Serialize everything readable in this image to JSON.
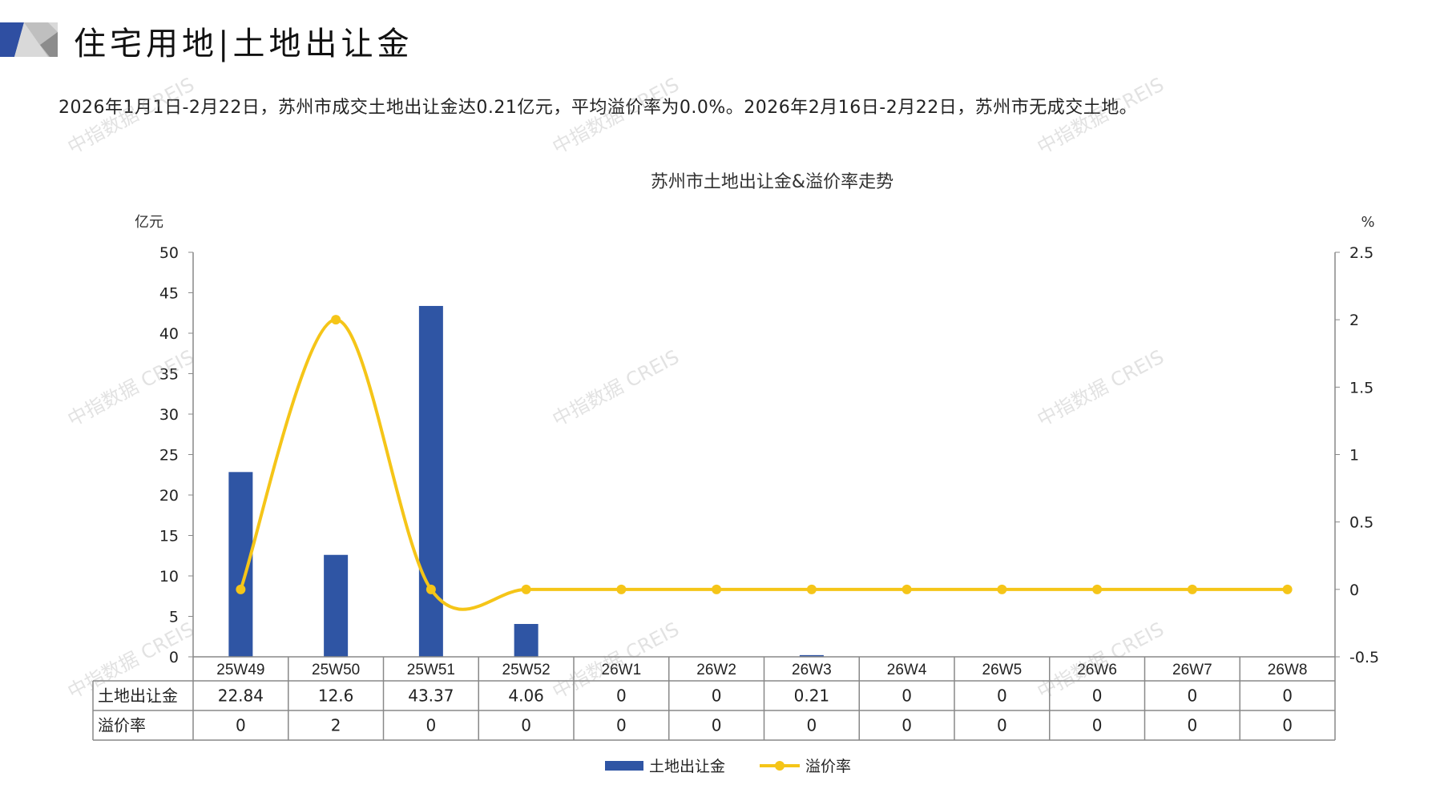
{
  "header": {
    "title": "住宅用地|土地出让金",
    "subtitle": "2026年1月1日-2月22日，苏州市成交土地出让金达0.21亿元，平均溢价率为0.0%。2026年2月16日-2月22日，苏州市无成交土地。"
  },
  "watermark": "中指数据 CREIS",
  "colors": {
    "bar": "#2F55A4",
    "line": "#F5C518",
    "logo_blue": "#2F4FA2",
    "logo_gray": "#BFBFBF"
  },
  "chart_data": {
    "type": "bar+line",
    "title": "苏州市土地出让金&溢价率走势",
    "categories": [
      "25W49",
      "25W50",
      "25W51",
      "25W52",
      "26W1",
      "26W2",
      "26W3",
      "26W4",
      "26W5",
      "26W6",
      "26W7",
      "26W8"
    ],
    "series": [
      {
        "name": "土地出让金",
        "type": "bar",
        "axis": "left",
        "values": [
          22.84,
          12.6,
          43.37,
          4.06,
          0,
          0,
          0.21,
          0,
          0,
          0,
          0,
          0
        ]
      },
      {
        "name": "溢价率",
        "type": "line",
        "axis": "right",
        "smooth": true,
        "values": [
          0,
          2,
          0,
          0,
          0,
          0,
          0,
          0,
          0,
          0,
          0,
          0
        ]
      }
    ],
    "y_left": {
      "label": "亿元",
      "range": [
        0,
        50
      ],
      "ticks": [
        "0",
        "5",
        "10",
        "15",
        "20",
        "25",
        "30",
        "35",
        "40",
        "45",
        "50"
      ]
    },
    "y_right": {
      "label": "%",
      "range": [
        -0.5,
        2.5
      ],
      "ticks": [
        "-0.5",
        "0",
        "0.5",
        "1",
        "1.5",
        "2",
        "2.5"
      ]
    },
    "table": {
      "rows": [
        {
          "label": "土地出让金",
          "cells": [
            "22.84",
            "12.6",
            "43.37",
            "4.06",
            "0",
            "0",
            "0.21",
            "0",
            "0",
            "0",
            "0",
            "0"
          ]
        },
        {
          "label": "溢价率",
          "cells": [
            "0",
            "2",
            "0",
            "0",
            "0",
            "0",
            "0",
            "0",
            "0",
            "0",
            "0",
            "0"
          ]
        }
      ]
    },
    "legend": {
      "position": "bottom",
      "items": [
        "土地出让金",
        "溢价率"
      ]
    },
    "grid": false
  }
}
